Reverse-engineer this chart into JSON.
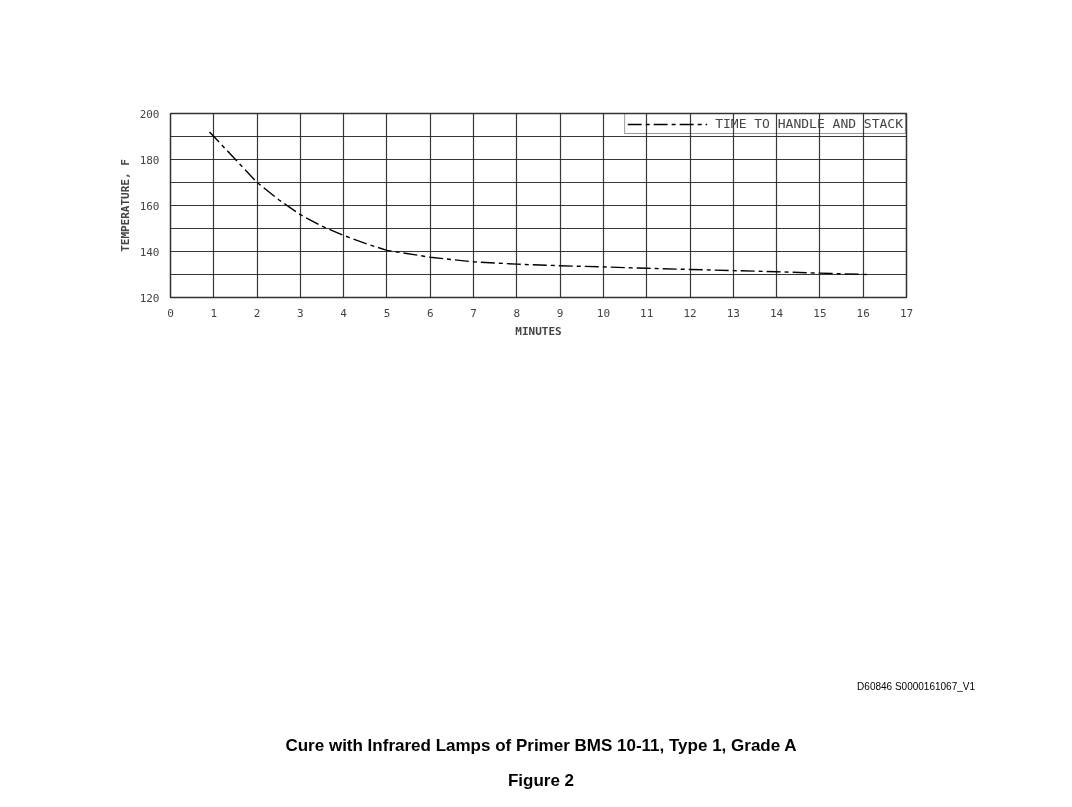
{
  "chart_data": {
    "type": "line",
    "title": "Cure with Infrared Lamps of Primer BMS 10-11, Type 1, Grade A",
    "subtitle": "Figure 2",
    "xlabel": "MINUTES",
    "ylabel": "TEMPERATURE, F",
    "x": [
      0.9,
      1,
      1.5,
      2,
      2.5,
      3,
      3.5,
      4,
      4.5,
      5,
      6,
      7,
      8,
      9,
      10,
      11,
      12,
      13,
      14,
      15,
      16.1
    ],
    "series": [
      {
        "name": "TIME TO HANDLE AND STACK",
        "color": "#000000",
        "values": [
          192,
          190,
          180,
          170,
          162.5,
          156,
          151,
          147,
          143.5,
          140.5,
          137.5,
          135.5,
          134.5,
          133.8,
          133.3,
          132.7,
          132.2,
          131.7,
          131.2,
          130.6,
          130
        ]
      }
    ],
    "xlim": [
      0,
      17
    ],
    "xticks": [
      0,
      1,
      2,
      3,
      4,
      5,
      6,
      7,
      8,
      9,
      10,
      11,
      12,
      13,
      14,
      15,
      16,
      17
    ],
    "ylim": [
      120,
      200
    ],
    "yticks": [
      120,
      {
        "value": 130,
        "label": null
      },
      140,
      {
        "value": 150,
        "label": null
      },
      160,
      {
        "value": 170,
        "label": null
      },
      180,
      {
        "value": 190,
        "label": null
      },
      200
    ],
    "grid": true,
    "legend": "top right",
    "line_style": "dashed",
    "annotations": [
      "D60846 S0000161067_V1"
    ]
  }
}
